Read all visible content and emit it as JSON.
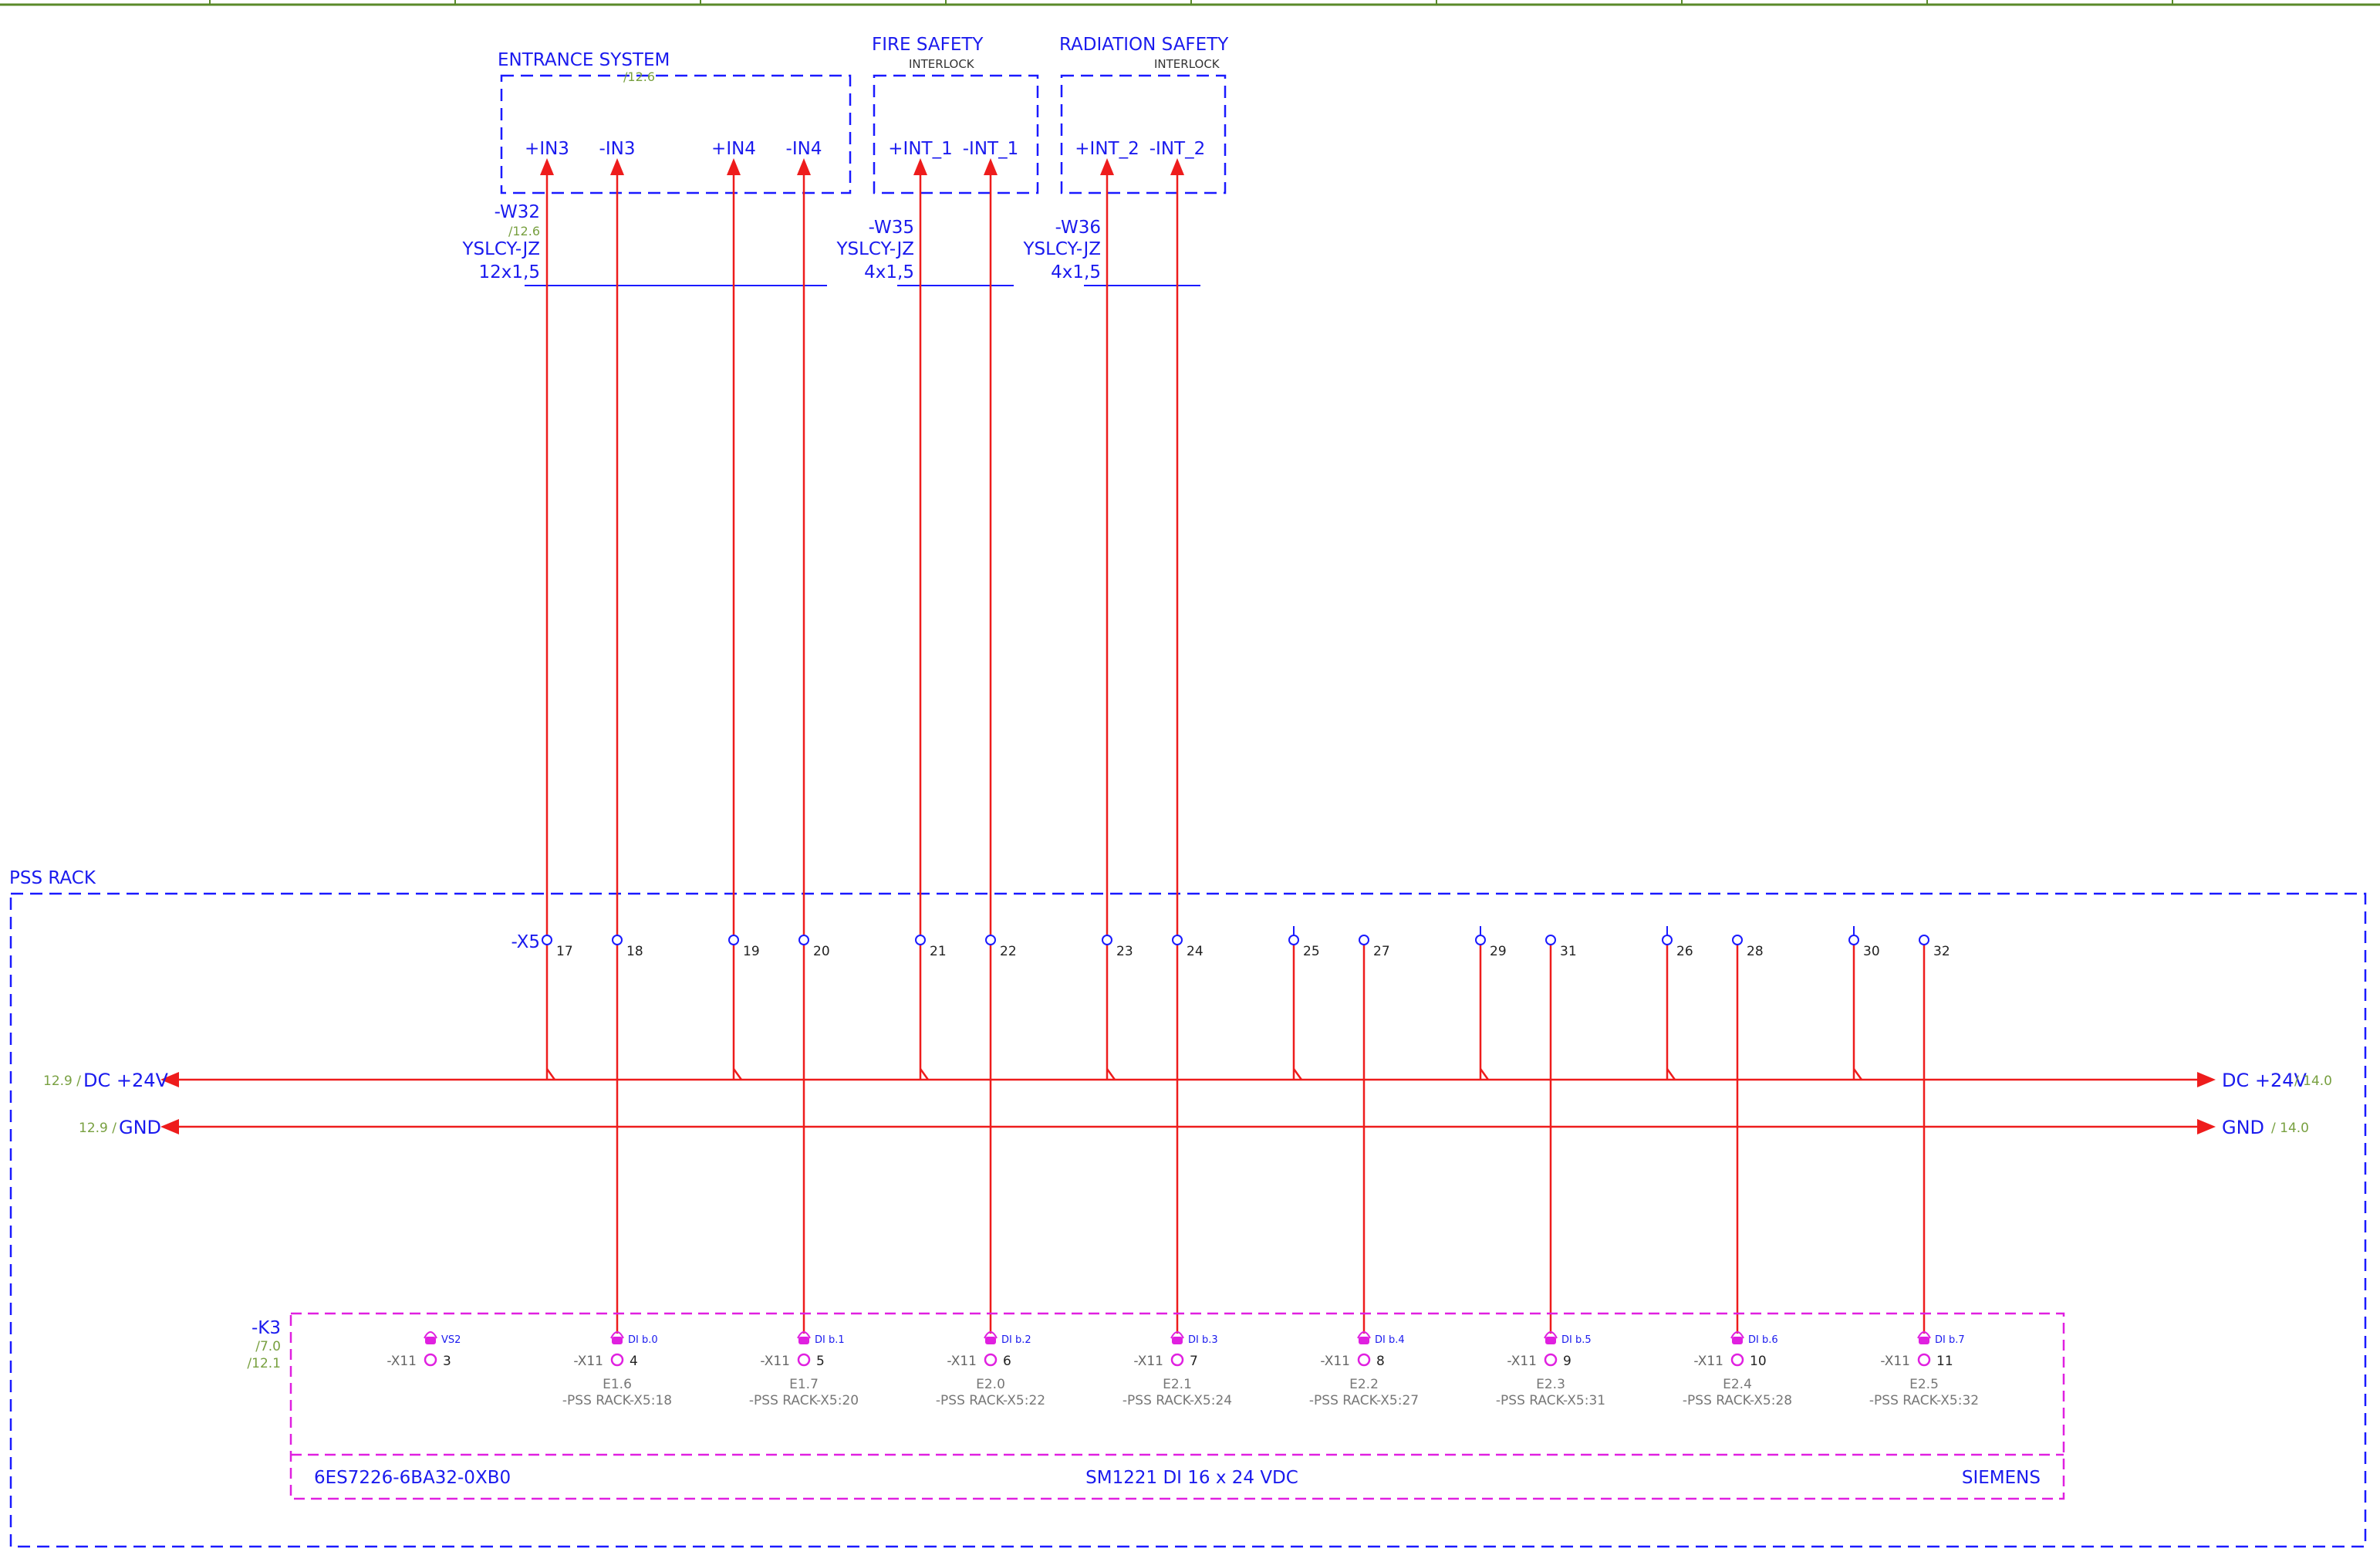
{
  "colors": {
    "frame_blue": "#1a1aff",
    "text_blue": "#1a1aee",
    "wire_red": "#ee1c1c",
    "ref_green": "#78a040",
    "module_magenta": "#e020e0",
    "gray_text": "#777777",
    "top_border": "#5a8a2a"
  },
  "groups": {
    "entrance": {
      "title": "ENTRANCE SYSTEM",
      "ref": "/12.6"
    },
    "fire": {
      "title": "FIRE SAFETY",
      "subtitle": "INTERLOCK"
    },
    "radiation": {
      "title": "RADIATION SAFETY",
      "subtitle": "INTERLOCK"
    }
  },
  "inputs": [
    "+IN3",
    "-IN3",
    "+IN4",
    "-IN4",
    "+INT_1",
    "-INT_1",
    "+INT_2",
    "-INT_2"
  ],
  "cables": [
    {
      "name": "-W32",
      "ref": "/12.6",
      "type": "YSLCY-JZ",
      "size": "12x1,5"
    },
    {
      "name": "-W35",
      "ref": "",
      "type": "YSLCY-JZ",
      "size": "4x1,5"
    },
    {
      "name": "-W36",
      "ref": "",
      "type": "YSLCY-JZ",
      "size": "4x1,5"
    }
  ],
  "rack": {
    "label": "PSS RACK",
    "terminal_strip": "-X5",
    "terminals": [
      "17",
      "18",
      "19",
      "20",
      "21",
      "22",
      "23",
      "24",
      "25",
      "27",
      "29",
      "31",
      "26",
      "28",
      "30",
      "32"
    ]
  },
  "rails": {
    "dc_label": "DC +24V",
    "gnd_label": "GND",
    "dc_ref_left": "12.9 /",
    "dc_ref_right": "/ 14.0",
    "gnd_ref_left": "12.9 /",
    "gnd_ref_right": "/ 14.0"
  },
  "module": {
    "tag": "-K3",
    "ref1": "/7.0",
    "ref2": "/12.1",
    "part_number": "6ES7226-6BA32-0XB0",
    "description": "SM1221 DI 16 x 24 VDC",
    "manufacturer": "SIEMENS",
    "connector": "-X11",
    "pins": [
      {
        "num": "3",
        "label": "VS2",
        "address": "",
        "source": ""
      },
      {
        "num": "4",
        "label": "DI b.0",
        "address": "E1.6",
        "source": "-PSS RACK-X5:18"
      },
      {
        "num": "5",
        "label": "DI b.1",
        "address": "E1.7",
        "source": "-PSS RACK-X5:20"
      },
      {
        "num": "6",
        "label": "DI b.2",
        "address": "E2.0",
        "source": "-PSS RACK-X5:22"
      },
      {
        "num": "7",
        "label": "DI b.3",
        "address": "E2.1",
        "source": "-PSS RACK-X5:24"
      },
      {
        "num": "8",
        "label": "DI b.4",
        "address": "E2.2",
        "source": "-PSS RACK-X5:27"
      },
      {
        "num": "9",
        "label": "DI b.5",
        "address": "E2.3",
        "source": "-PSS RACK-X5:31"
      },
      {
        "num": "10",
        "label": "DI b.6",
        "address": "E2.4",
        "source": "-PSS RACK-X5:28"
      },
      {
        "num": "11",
        "label": "DI b.7",
        "address": "E2.5",
        "source": "-PSS RACK-X5:32"
      }
    ]
  }
}
